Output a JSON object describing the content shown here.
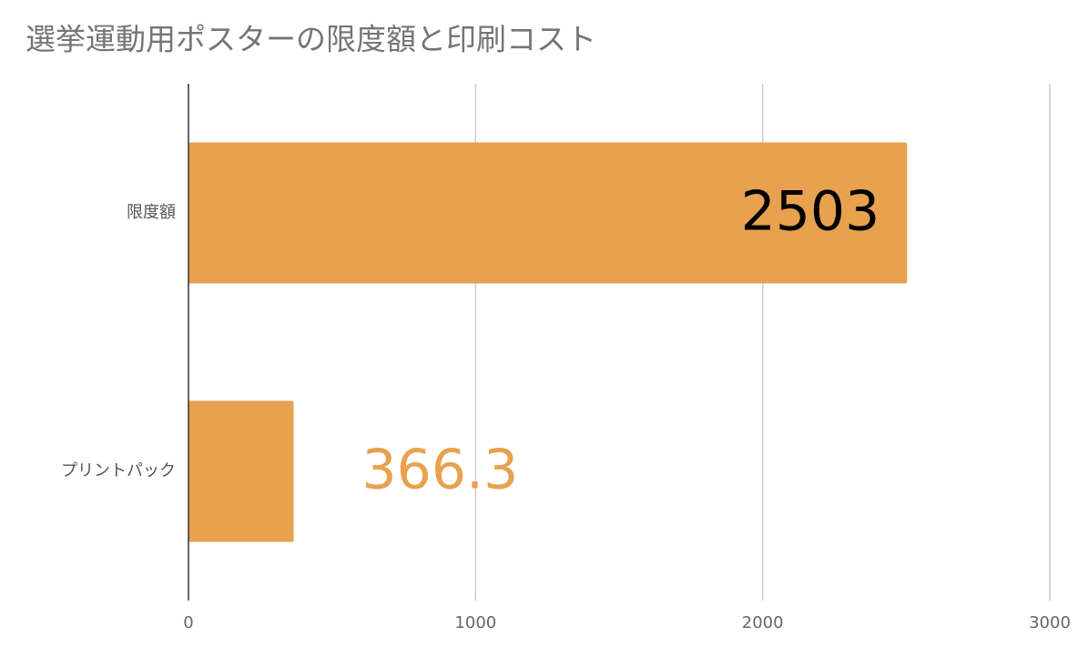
{
  "chart_data": {
    "type": "bar",
    "orientation": "horizontal",
    "title": "選挙運動用ポスターの限度額と印刷コスト",
    "categories": [
      "限度額",
      "プリントパック"
    ],
    "values": [
      2503,
      366.3
    ],
    "color": "#e8a14e",
    "xlim": [
      0,
      3000
    ],
    "xticks": [
      0,
      1000,
      2000,
      3000
    ],
    "grid": true
  }
}
